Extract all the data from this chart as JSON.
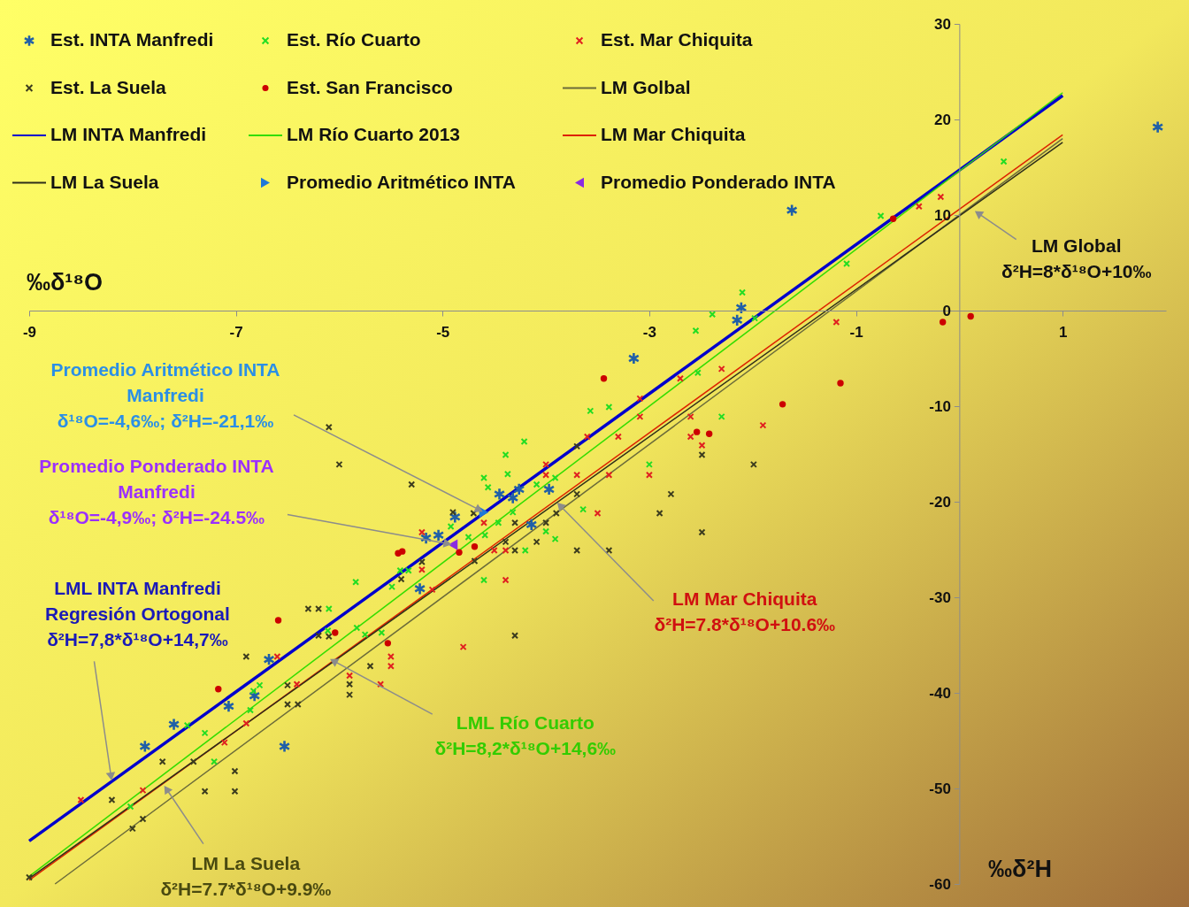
{
  "chart_data": {
    "type": "scatter",
    "xlabel": "‰δ¹⁸O",
    "ylabel": "‰δ²H",
    "xlim": [
      -9,
      2
    ],
    "ylim": [
      -60,
      30
    ],
    "xticks": [
      -9,
      -7,
      -5,
      -3,
      -1,
      1
    ],
    "yticks": [
      -60,
      -50,
      -40,
      -30,
      -20,
      -10,
      0,
      10,
      20,
      30
    ],
    "legend": "top left",
    "series": [
      {
        "name": "Est. INTA Manfredi",
        "marker": "cross",
        "color": "#1f5fa8",
        "x": [
          1.92,
          -1.62,
          -2.11,
          -2.15,
          -3.15,
          -3.97,
          -4.14,
          -4.26,
          -4.32,
          -4.45,
          -4.88,
          -5.04,
          -5.16,
          -5.22,
          -6.68,
          -6.82,
          -7.07,
          -7.6,
          -7.88,
          -6.53
        ],
        "values": [
          19.2,
          10.5,
          0.3,
          -1.0,
          -5.0,
          -18.7,
          -22.4,
          -18.7,
          -19.6,
          -19.2,
          -21.6,
          -23.5,
          -23.8,
          -29.1,
          -36.5,
          -40.3,
          -41.4,
          -43.3,
          -45.6,
          -45.6
        ]
      },
      {
        "name": "Est. Río Cuarto",
        "marker": "cross",
        "color": "#22dd22",
        "x": [
          0.43,
          -0.76,
          -1.09,
          -2.1,
          -2.39,
          -1.98,
          -2.55,
          -2.53,
          -3.39,
          -2.3,
          -3.57,
          -4.21,
          -4.39,
          -4.37,
          -3.0,
          -4.09,
          -3.91,
          -4.32,
          -4.46,
          -3.64,
          -4.0,
          -3.91,
          -4.2,
          -4.6,
          -4.56,
          -4.92,
          -4.75,
          -4.59,
          -4.6,
          -5.41,
          -5.33,
          -5.84,
          -5.49,
          -6.1,
          -5.83,
          -5.75,
          -5.59,
          -6.11,
          -6.77,
          -6.83,
          -6.86,
          -7.47,
          -7.3,
          -7.21,
          -8.02
        ],
        "values": [
          15.6,
          9.9,
          4.9,
          1.9,
          -0.4,
          -0.8,
          -2.1,
          -6.5,
          -10.1,
          -11.1,
          -10.5,
          -13.7,
          -15.1,
          -17.1,
          -16.1,
          -18.2,
          -17.5,
          -21.1,
          -22.2,
          -20.8,
          -23.1,
          -23.9,
          -25.1,
          -17.5,
          -18.5,
          -22.6,
          -23.7,
          -23.5,
          -28.2,
          -27.2,
          -27.2,
          -28.4,
          -28.9,
          -31.2,
          -33.2,
          -33.9,
          -33.7,
          -33.5,
          -39.2,
          -39.8,
          -41.8,
          -43.4,
          -44.2,
          -47.2,
          -51.9
        ]
      },
      {
        "name": "Est. Mar Chiquita",
        "marker": "cross",
        "color": "#e02020",
        "x": [
          -0.18,
          -0.39,
          -1.19,
          -2.7,
          -2.3,
          -3.09,
          -3.09,
          -2.6,
          -1.9,
          -3.6,
          -3.3,
          -2.6,
          -2.49,
          -4.0,
          -4.0,
          -3.7,
          -3.39,
          -3.0,
          -3.5,
          -4.39,
          -4.39,
          -4.6,
          -5.2,
          -5.2,
          -4.5,
          -5.1,
          -4.8,
          -5.5,
          -5.5,
          -5.9,
          -5.6,
          -6.41,
          -6.6,
          -6.9,
          -7.11,
          -7.9,
          -8.5
        ],
        "values": [
          11.9,
          10.9,
          -1.2,
          -7.1,
          -6.1,
          -9.2,
          -11.1,
          -11.1,
          -12.0,
          -13.2,
          -13.2,
          -13.2,
          -14.1,
          -16.1,
          -17.2,
          -17.2,
          -17.2,
          -17.2,
          -21.2,
          -25.1,
          -28.2,
          -22.2,
          -23.2,
          -27.1,
          -25.1,
          -29.2,
          -35.2,
          -36.2,
          -37.2,
          -38.2,
          -39.1,
          -39.1,
          -36.2,
          -43.2,
          -45.2,
          -50.2,
          -51.2
        ]
      },
      {
        "name": "Est. La Suela",
        "marker": "cross",
        "color": "#3c3c1e",
        "x": [
          -3.7,
          -2.49,
          -1.99,
          -2.79,
          -2.9,
          -2.49,
          -3.7,
          -3.9,
          -4.0,
          -4.3,
          -4.09,
          -4.39,
          -4.3,
          -3.7,
          -3.39,
          -4.3,
          -6.1,
          -6.0,
          -5.3,
          -4.9,
          -4.7,
          -4.69,
          -5.2,
          -5.4,
          -6.3,
          -6.2,
          -6.2,
          -6.1,
          -5.7,
          -5.9,
          -5.9,
          -6.5,
          -6.5,
          -6.4,
          -6.9,
          -7.71,
          -7.41,
          -7.01,
          -7.3,
          -7.01,
          -8.2,
          -7.9,
          -8.0,
          -9.0
        ],
        "values": [
          -14.2,
          -15.1,
          -16.1,
          -19.2,
          -21.2,
          -23.2,
          -19.2,
          -21.2,
          -22.2,
          -22.2,
          -24.2,
          -24.2,
          -25.1,
          -25.1,
          -25.1,
          -34.0,
          -12.2,
          -16.1,
          -18.2,
          -21.1,
          -21.2,
          -26.2,
          -26.3,
          -28.1,
          -31.2,
          -31.2,
          -34.0,
          -34.1,
          -37.2,
          -39.1,
          -40.2,
          -39.2,
          -41.2,
          -41.2,
          -36.2,
          -47.2,
          -47.2,
          -48.2,
          -50.3,
          -50.3,
          -51.2,
          -53.2,
          -54.2,
          -59.3
        ]
      },
      {
        "name": "Est. San Francisco",
        "marker": "circle",
        "color": "#cc0000",
        "x": [
          -0.64,
          -0.16,
          0.11,
          -1.15,
          -1.71,
          -3.44,
          -2.54,
          -2.42,
          -5.43,
          -5.39,
          -4.84,
          -4.69,
          -6.59,
          -6.04,
          -5.53,
          -7.17
        ],
        "values": [
          9.6,
          -1.2,
          -0.6,
          -7.6,
          -9.8,
          -7.1,
          -12.7,
          -12.9,
          -25.4,
          -25.2,
          -25.3,
          -24.7,
          -32.4,
          -33.7,
          -34.8,
          -39.6
        ]
      },
      {
        "name": "LM Golbal",
        "type": "line",
        "color": "#6b6b3a",
        "x": [
          -8.75,
          1
        ],
        "values": [
          -60,
          18
        ]
      },
      {
        "name": "LM INTA Manfredi",
        "type": "line",
        "color": "#0000cc",
        "x": [
          -9,
          1
        ],
        "values": [
          -55.5,
          22.5
        ]
      },
      {
        "name": "LM Río Cuarto 2013",
        "type": "line",
        "color": "#33dd00",
        "x": [
          -9,
          1
        ],
        "values": [
          -59.2,
          22.8
        ]
      },
      {
        "name": "LM Mar Chiquita",
        "type": "line",
        "color": "#dd2200",
        "x": [
          -9,
          1
        ],
        "values": [
          -59.6,
          18.4
        ]
      },
      {
        "name": "LM La Suela",
        "type": "line",
        "color": "#2e2e1a",
        "x": [
          -9,
          1
        ],
        "values": [
          -59.4,
          17.6
        ]
      },
      {
        "name": "Promedio Aritmético INTA",
        "marker": "triangle-right",
        "color": "#1e78d8",
        "x": [
          -4.6
        ],
        "values": [
          -21.1
        ]
      },
      {
        "name": "Promedio Ponderado INTA",
        "marker": "triangle-left",
        "color": "#8a2be2",
        "x": [
          -4.9
        ],
        "values": [
          -24.5
        ]
      }
    ],
    "annotations": [
      {
        "text": "Promedio Aritmético INTA\nManfredi\nδ¹⁸O=-4,6‰; δ²H=-21,1‰",
        "x": -4.6,
        "y": -21.1
      },
      {
        "text": "Promedio Ponderado INTA\nManfredi\nδ¹⁸O=-4,9‰; δ²H=-24.5‰",
        "x": -4.9,
        "y": -24.5
      },
      {
        "text": "LML INTA Manfredi\nRegresión Ortogonal\nδ²H=7,8*δ¹⁸O+14,7‰",
        "x": -8.2,
        "y": -49.3
      },
      {
        "text": "LM La Suela\nδ²H=7.7*δ¹⁸O+9.9‰",
        "x": -7.7,
        "y": -49.6
      },
      {
        "text": "LML Río Cuarto\nδ²H=8,2*δ¹⁸O+14,6‰",
        "x": -6.1,
        "y": -36.4
      },
      {
        "text": "LM Mar Chiquita\nδ²H=7.8*δ¹⁸O+10.6‰",
        "x": -3.9,
        "y": -20.0
      },
      {
        "text": "LM Global\nδ²H=8*δ¹⁸O+10‰",
        "x": 0.14,
        "y": 10.5
      }
    ]
  }
}
